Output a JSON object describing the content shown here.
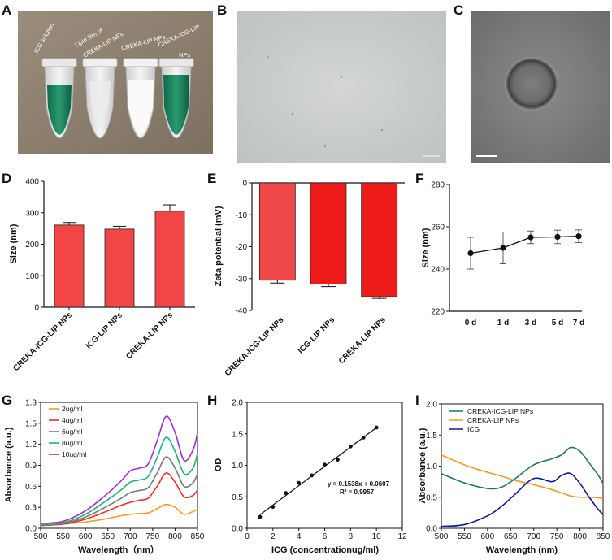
{
  "panel_letters": [
    "A",
    "B",
    "C",
    "D",
    "E",
    "F",
    "G",
    "H",
    "I"
  ],
  "photo_A": {
    "tube_labels": [
      "ICG solution",
      "Lipid film of",
      "CREKA-LIP NPs",
      "CREKA-LIP NPs",
      "CREKA-ICG-LIP",
      "NPs"
    ]
  },
  "colors": {
    "bar_D": "#f24545",
    "bar_E": "#ee1b1b",
    "line_F": "#111111",
    "green": "#1f7a52",
    "orange": "#f39a2a",
    "navy": "#14149a"
  },
  "chart_data": [
    {
      "panel": "D",
      "type": "bar",
      "categories": [
        "CREKA-ICG-LIP NPs",
        "ICG-LIP NPs",
        "CREKA-LIP NPs"
      ],
      "values": [
        261,
        248,
        305
      ],
      "errors": [
        8,
        9,
        20
      ],
      "ylabel": "Size (nm)",
      "ylim": [
        0,
        400
      ],
      "yticks": [
        "0",
        "100",
        "200",
        "300",
        "400"
      ]
    },
    {
      "panel": "E",
      "type": "bar",
      "categories": [
        "CREKA-ICG-LIP NPs",
        "ICG-LIP NPs",
        "CREKA-LIP NPs"
      ],
      "values": [
        -30.5,
        -31.7,
        -35.7
      ],
      "errors": [
        0.9,
        0.8,
        0.5
      ],
      "ylabel": "Zeta potential (mV)",
      "ylim": [
        -40,
        0
      ],
      "yticks": [
        "0",
        "-10",
        "-20",
        "-30",
        "-40"
      ]
    },
    {
      "panel": "F",
      "type": "line",
      "categories": [
        "0 d",
        "1 d",
        "3 d",
        "5 d",
        "7 d"
      ],
      "values": [
        247.5,
        250,
        255,
        255.2,
        255.5
      ],
      "errors": [
        7.5,
        7.5,
        3,
        3.2,
        3
      ],
      "ylabel": "Size (nm)",
      "ylim": [
        220,
        280
      ],
      "yticks": [
        "220",
        "240",
        "260",
        "280"
      ]
    },
    {
      "panel": "G",
      "type": "line",
      "title": "",
      "xlabel": "Wavelength（nm）",
      "ylabel": "Absorbance (a.u.)",
      "xlim": [
        500,
        850
      ],
      "ylim": [
        0,
        1.8
      ],
      "xticks": [
        "500",
        "550",
        "600",
        "650",
        "700",
        "750",
        "800",
        "850"
      ],
      "yticks": [
        "0.0",
        "0.3",
        "0.6",
        "0.9",
        "1.2",
        "1.5",
        "1.8"
      ],
      "x": [
        500,
        550,
        600,
        650,
        680,
        700,
        720,
        740,
        760,
        780,
        800,
        820,
        840,
        850
      ],
      "series": [
        {
          "name": "2ug/ml",
          "color": "#f39a2a",
          "values": [
            0.04,
            0.06,
            0.09,
            0.14,
            0.18,
            0.2,
            0.21,
            0.22,
            0.28,
            0.34,
            0.3,
            0.2,
            0.24,
            0.27
          ]
        },
        {
          "name": "4ug/ml",
          "color": "#e8312c",
          "values": [
            0.04,
            0.06,
            0.13,
            0.25,
            0.33,
            0.37,
            0.4,
            0.43,
            0.6,
            0.79,
            0.66,
            0.45,
            0.47,
            0.55
          ]
        },
        {
          "name": "6ug/ml",
          "color": "#7a7a7a",
          "values": [
            0.05,
            0.07,
            0.16,
            0.32,
            0.43,
            0.51,
            0.54,
            0.58,
            0.79,
            1.02,
            0.86,
            0.6,
            0.65,
            0.78
          ]
        },
        {
          "name": "8ug/ml",
          "color": "#21b07a",
          "values": [
            0.05,
            0.08,
            0.2,
            0.41,
            0.55,
            0.66,
            0.69,
            0.74,
            1.01,
            1.3,
            1.1,
            0.78,
            0.86,
            1.07
          ]
        },
        {
          "name": "10ug/ml",
          "color": "#a22cc9",
          "values": [
            0.07,
            0.1,
            0.25,
            0.5,
            0.68,
            0.82,
            0.86,
            0.92,
            1.25,
            1.6,
            1.37,
            0.97,
            1.12,
            1.36
          ]
        }
      ]
    },
    {
      "panel": "H",
      "type": "scatter",
      "xlabel": "ICG (concentrationug/ml)",
      "ylabel": "OD",
      "xlim": [
        0,
        12
      ],
      "ylim": [
        0,
        2.0
      ],
      "xticks": [
        "0",
        "2",
        "4",
        "6",
        "8",
        "10",
        "12"
      ],
      "yticks": [
        "0.0",
        "0.5",
        "1.0",
        "1.5",
        "2.0"
      ],
      "x": [
        1,
        2,
        3,
        4,
        5,
        6,
        7,
        8,
        9,
        10
      ],
      "y": [
        0.18,
        0.34,
        0.56,
        0.72,
        0.84,
        1.01,
        1.09,
        1.3,
        1.44,
        1.6
      ],
      "fit": {
        "slope": 0.1538,
        "intercept": 0.0607
      },
      "equation": "y = 0.1538x + 0.0607",
      "r2": "R² = 0.9957"
    },
    {
      "panel": "I",
      "type": "line",
      "xlabel": "Wavelength (nm)",
      "ylabel": "Absorbance (a.u.)",
      "xlim": [
        500,
        850
      ],
      "ylim": [
        0,
        2.0
      ],
      "xticks": [
        "500",
        "550",
        "600",
        "650",
        "700",
        "750",
        "800",
        "850"
      ],
      "yticks": [
        "0.0",
        "0.5",
        "1.0",
        "1.5",
        "2.0"
      ],
      "x": [
        500,
        550,
        600,
        630,
        660,
        700,
        740,
        760,
        780,
        800,
        820,
        840,
        850
      ],
      "series": [
        {
          "name": "CREKA-ICG-LIP NPs",
          "color": "#1f7a52",
          "values": [
            0.88,
            0.73,
            0.64,
            0.66,
            0.8,
            1.02,
            1.12,
            1.18,
            1.3,
            1.24,
            1.05,
            0.85,
            0.72
          ]
        },
        {
          "name": "CREKA-LIP NPs",
          "color": "#f39a2a",
          "values": [
            1.18,
            1.02,
            0.9,
            0.84,
            0.77,
            0.7,
            0.62,
            0.57,
            0.52,
            0.5,
            0.5,
            0.49,
            0.48
          ]
        },
        {
          "name": "ICG",
          "color": "#14149a",
          "values": [
            0.03,
            0.06,
            0.2,
            0.35,
            0.55,
            0.8,
            0.75,
            0.85,
            0.88,
            0.72,
            0.5,
            0.3,
            0.22
          ]
        }
      ]
    }
  ]
}
